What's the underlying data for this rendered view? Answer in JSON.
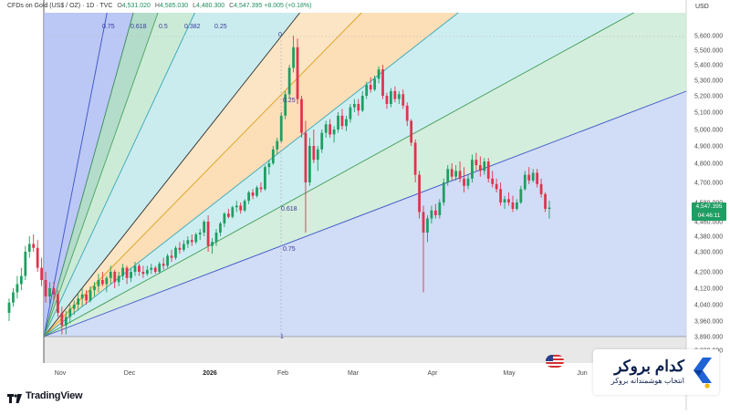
{
  "header": {
    "symbol": "CFDs on Gold (US$ / OZ) · 1D · TVC",
    "open_label": "O",
    "open": "4,531.020",
    "high_label": "H",
    "high": "4,585.030",
    "low_label": "L",
    "low": "4,480.300",
    "close_label": "C",
    "close": "4,547.395",
    "change": "+8.005 (+0.18%)"
  },
  "currency": "USD",
  "price_tag": {
    "price": "4,547.395",
    "countdown": "04:46:11"
  },
  "brand": {
    "name": "TradingView"
  },
  "broker": {
    "title": "کدام بروکر",
    "subtitle": "انتخاب هوشمندانه بروکر"
  },
  "chart_data": {
    "type": "candlestick",
    "title": "CFDs on Gold (US$ / OZ) · 1D · TVC",
    "y_axis": {
      "ticks": [
        "5,600.000",
        "5,500.000",
        "5,400.000",
        "5,300.000",
        "5,200.000",
        "5,100.000",
        "5,000.000",
        "4,900.000",
        "4,800.000",
        "4,700.000",
        "4,580.000",
        "4,460.000",
        "4,380.000",
        "4,300.000",
        "4,200.000",
        "4,120.000",
        "4,040.000",
        "3,960.000",
        "3,890.000",
        "3,820.000"
      ],
      "tick_values": [
        5600,
        5500,
        5400,
        5300,
        5200,
        5100,
        5000,
        4900,
        4800,
        4700,
        4580,
        4460,
        4380,
        4300,
        4200,
        4120,
        4040,
        3960,
        3890,
        3820
      ],
      "range": [
        3800,
        5700
      ]
    },
    "x_axis": {
      "labels": [
        "Nov",
        "Dec",
        "2026",
        "Feb",
        "Mar",
        "Apr",
        "May",
        "Jun"
      ],
      "bold_labels": [
        "2026"
      ]
    },
    "fib_fan_labels": [
      "0.75",
      "0.618",
      "0.5",
      "0.382",
      "0.25",
      "0",
      "0.25",
      "0.618",
      "0.75",
      "1"
    ],
    "colors": {
      "up": "#1e9e62",
      "down": "#e0334d",
      "fan_line": "#2b2b2b"
    },
    "ohlc": [
      [
        4000,
        4070,
        3960,
        4050
      ],
      [
        4050,
        4120,
        4030,
        4100
      ],
      [
        4100,
        4180,
        4070,
        4140
      ],
      [
        4140,
        4220,
        4110,
        4180
      ],
      [
        4180,
        4330,
        4160,
        4300
      ],
      [
        4300,
        4380,
        4270,
        4340
      ],
      [
        4340,
        4390,
        4300,
        4320
      ],
      [
        4320,
        4360,
        4200,
        4220
      ],
      [
        4220,
        4270,
        4130,
        4160
      ],
      [
        4160,
        4200,
        4050,
        4080
      ],
      [
        4080,
        4150,
        4040,
        4120
      ],
      [
        4120,
        4150,
        4060,
        4090
      ],
      [
        4090,
        4110,
        3980,
        4000
      ],
      [
        4000,
        4030,
        3900,
        3940
      ],
      [
        3940,
        4010,
        3900,
        3980
      ],
      [
        3980,
        4040,
        3950,
        4020
      ],
      [
        4020,
        4060,
        3990,
        4040
      ],
      [
        4040,
        4100,
        4010,
        4070
      ],
      [
        4070,
        4120,
        4030,
        4090
      ],
      [
        4090,
        4110,
        4040,
        4060
      ],
      [
        4060,
        4130,
        4050,
        4110
      ],
      [
        4110,
        4150,
        4080,
        4130
      ],
      [
        4130,
        4190,
        4100,
        4160
      ],
      [
        4160,
        4200,
        4130,
        4140
      ],
      [
        4140,
        4180,
        4100,
        4170
      ],
      [
        4170,
        4230,
        4140,
        4200
      ],
      [
        4200,
        4210,
        4120,
        4150
      ],
      [
        4150,
        4200,
        4130,
        4180
      ],
      [
        4180,
        4240,
        4160,
        4220
      ],
      [
        4220,
        4230,
        4140,
        4170
      ],
      [
        4170,
        4220,
        4150,
        4200
      ],
      [
        4200,
        4250,
        4180,
        4230
      ],
      [
        4230,
        4240,
        4180,
        4200
      ],
      [
        4200,
        4230,
        4170,
        4190
      ],
      [
        4190,
        4230,
        4180,
        4210
      ],
      [
        4210,
        4240,
        4190,
        4220
      ],
      [
        4220,
        4230,
        4190,
        4200
      ],
      [
        4200,
        4250,
        4190,
        4240
      ],
      [
        4240,
        4270,
        4210,
        4230
      ],
      [
        4230,
        4290,
        4220,
        4280
      ],
      [
        4280,
        4310,
        4250,
        4270
      ],
      [
        4270,
        4330,
        4260,
        4320
      ],
      [
        4320,
        4350,
        4290,
        4310
      ],
      [
        4310,
        4360,
        4300,
        4340
      ],
      [
        4340,
        4380,
        4320,
        4360
      ],
      [
        4360,
        4390,
        4330,
        4350
      ],
      [
        4350,
        4400,
        4340,
        4390
      ],
      [
        4390,
        4420,
        4360,
        4400
      ],
      [
        4400,
        4470,
        4380,
        4460
      ],
      [
        4460,
        4500,
        4300,
        4330
      ],
      [
        4330,
        4370,
        4290,
        4350
      ],
      [
        4350,
        4420,
        4330,
        4400
      ],
      [
        4400,
        4460,
        4380,
        4450
      ],
      [
        4450,
        4520,
        4430,
        4510
      ],
      [
        4510,
        4540,
        4480,
        4490
      ],
      [
        4490,
        4560,
        4480,
        4550
      ],
      [
        4550,
        4590,
        4520,
        4560
      ],
      [
        4560,
        4580,
        4510,
        4530
      ],
      [
        4530,
        4600,
        4520,
        4590
      ],
      [
        4590,
        4650,
        4570,
        4640
      ],
      [
        4640,
        4660,
        4600,
        4620
      ],
      [
        4620,
        4680,
        4610,
        4670
      ],
      [
        4670,
        4700,
        4640,
        4660
      ],
      [
        4660,
        4790,
        4650,
        4780
      ],
      [
        4780,
        4820,
        4740,
        4800
      ],
      [
        4800,
        4900,
        4790,
        4880
      ],
      [
        4880,
        4950,
        4850,
        4930
      ],
      [
        4930,
        5100,
        4920,
        5080
      ],
      [
        5080,
        5230,
        5060,
        5210
      ],
      [
        5210,
        5400,
        5180,
        5380
      ],
      [
        5380,
        5600,
        5350,
        5520
      ],
      [
        5520,
        5580,
        5150,
        5180
      ],
      [
        5180,
        5200,
        4950,
        4980
      ],
      [
        4980,
        5050,
        4400,
        4700
      ],
      [
        4700,
        4950,
        4680,
        4900
      ],
      [
        4900,
        5000,
        4800,
        4820
      ],
      [
        4820,
        4900,
        4760,
        4880
      ],
      [
        4880,
        5000,
        4860,
        4980
      ],
      [
        4980,
        5050,
        4950,
        5030
      ],
      [
        5030,
        5060,
        4950,
        4970
      ],
      [
        4970,
        5020,
        4920,
        5000
      ],
      [
        5000,
        5100,
        4980,
        5080
      ],
      [
        5080,
        5120,
        5000,
        5020
      ],
      [
        5020,
        5080,
        4990,
        5060
      ],
      [
        5060,
        5150,
        5040,
        5130
      ],
      [
        5130,
        5180,
        5100,
        5150
      ],
      [
        5150,
        5180,
        5080,
        5110
      ],
      [
        5110,
        5230,
        5100,
        5200
      ],
      [
        5200,
        5290,
        5180,
        5270
      ],
      [
        5270,
        5320,
        5220,
        5240
      ],
      [
        5240,
        5330,
        5230,
        5310
      ],
      [
        5310,
        5390,
        5280,
        5370
      ],
      [
        5370,
        5400,
        5180,
        5200
      ],
      [
        5200,
        5220,
        5120,
        5150
      ],
      [
        5150,
        5250,
        5130,
        5230
      ],
      [
        5230,
        5260,
        5160,
        5180
      ],
      [
        5180,
        5230,
        5150,
        5210
      ],
      [
        5210,
        5240,
        5120,
        5140
      ],
      [
        5140,
        5160,
        5020,
        5050
      ],
      [
        5050,
        5060,
        4900,
        4920
      ],
      [
        4920,
        4940,
        4700,
        4740
      ],
      [
        4740,
        4760,
        4480,
        4520
      ],
      [
        4520,
        4560,
        4100,
        4400
      ],
      [
        4400,
        4500,
        4350,
        4480
      ],
      [
        4480,
        4560,
        4450,
        4530
      ],
      [
        4530,
        4570,
        4480,
        4500
      ],
      [
        4500,
        4600,
        4480,
        4580
      ],
      [
        4580,
        4720,
        4560,
        4700
      ],
      [
        4700,
        4790,
        4680,
        4770
      ],
      [
        4770,
        4800,
        4710,
        4730
      ],
      [
        4730,
        4790,
        4710,
        4760
      ],
      [
        4760,
        4810,
        4700,
        4720
      ],
      [
        4720,
        4780,
        4640,
        4680
      ],
      [
        4680,
        4740,
        4660,
        4720
      ],
      [
        4720,
        4850,
        4700,
        4820
      ],
      [
        4820,
        4860,
        4760,
        4790
      ],
      [
        4790,
        4840,
        4730,
        4760
      ],
      [
        4760,
        4830,
        4740,
        4810
      ],
      [
        4810,
        4830,
        4700,
        4720
      ],
      [
        4720,
        4760,
        4670,
        4690
      ],
      [
        4690,
        4720,
        4640,
        4660
      ],
      [
        4660,
        4700,
        4560,
        4580
      ],
      [
        4580,
        4620,
        4540,
        4600
      ],
      [
        4600,
        4640,
        4560,
        4580
      ],
      [
        4580,
        4620,
        4520,
        4540
      ],
      [
        4540,
        4600,
        4530,
        4580
      ],
      [
        4580,
        4680,
        4570,
        4660
      ],
      [
        4660,
        4760,
        4650,
        4740
      ],
      [
        4740,
        4780,
        4690,
        4710
      ],
      [
        4710,
        4770,
        4700,
        4750
      ],
      [
        4750,
        4770,
        4670,
        4690
      ],
      [
        4690,
        4720,
        4610,
        4630
      ],
      [
        4630,
        4640,
        4520,
        4540
      ],
      [
        4540,
        4590,
        4480,
        4548
      ]
    ]
  }
}
